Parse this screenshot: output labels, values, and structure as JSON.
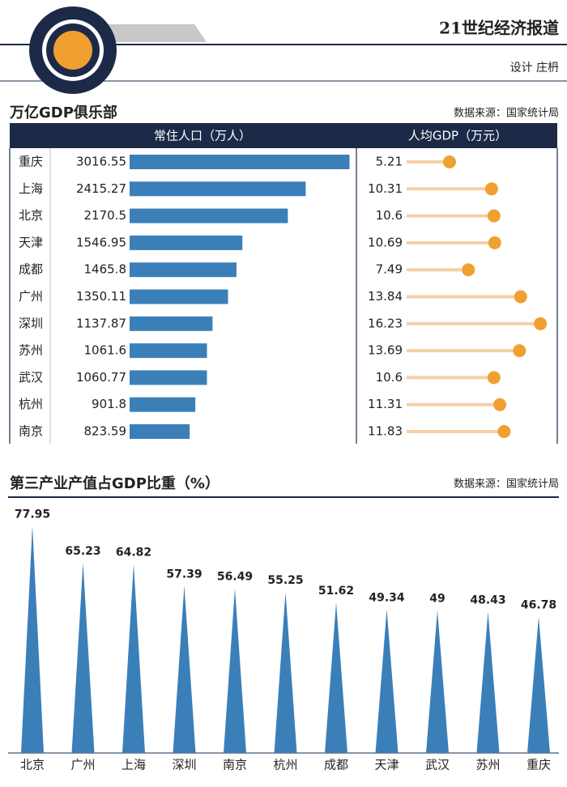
{
  "header": {
    "brand": "21世纪经济报道",
    "designer": "设计 庄枬"
  },
  "chart_data": [
    {
      "type": "dual-bar",
      "title": "万亿GDP俱乐部",
      "source": "数据来源：国家统计局",
      "categories": [
        "重庆",
        "上海",
        "北京",
        "天津",
        "成都",
        "广州",
        "深圳",
        "苏州",
        "武汉",
        "杭州",
        "南京"
      ],
      "series": [
        {
          "name": "常住人口（万人）",
          "color": "#3b7fb9",
          "xlim": [
            0,
            3100
          ],
          "values": [
            3016.55,
            2415.27,
            2170.5,
            1546.95,
            1465.8,
            1350.11,
            1137.87,
            1061.6,
            1060.77,
            901.8,
            823.59
          ]
        },
        {
          "name": "人均GDP（万元）",
          "color": "#f0a030",
          "xlim": [
            0,
            17
          ],
          "values": [
            5.21,
            10.31,
            10.6,
            10.69,
            7.49,
            13.84,
            16.23,
            13.69,
            10.6,
            11.31,
            11.83
          ]
        }
      ]
    },
    {
      "type": "spike",
      "title": "第三产业产值占GDP比重（%）",
      "source": "数据来源：国家统计局",
      "categories": [
        "北京",
        "广州",
        "上海",
        "深圳",
        "南京",
        "杭州",
        "成都",
        "天津",
        "武汉",
        "苏州",
        "重庆"
      ],
      "values": [
        77.95,
        65.23,
        64.82,
        57.39,
        56.49,
        55.25,
        51.62,
        49.34,
        49,
        48.43,
        46.78
      ],
      "color": "#3b7fb9",
      "ylim": [
        0,
        80
      ]
    }
  ]
}
